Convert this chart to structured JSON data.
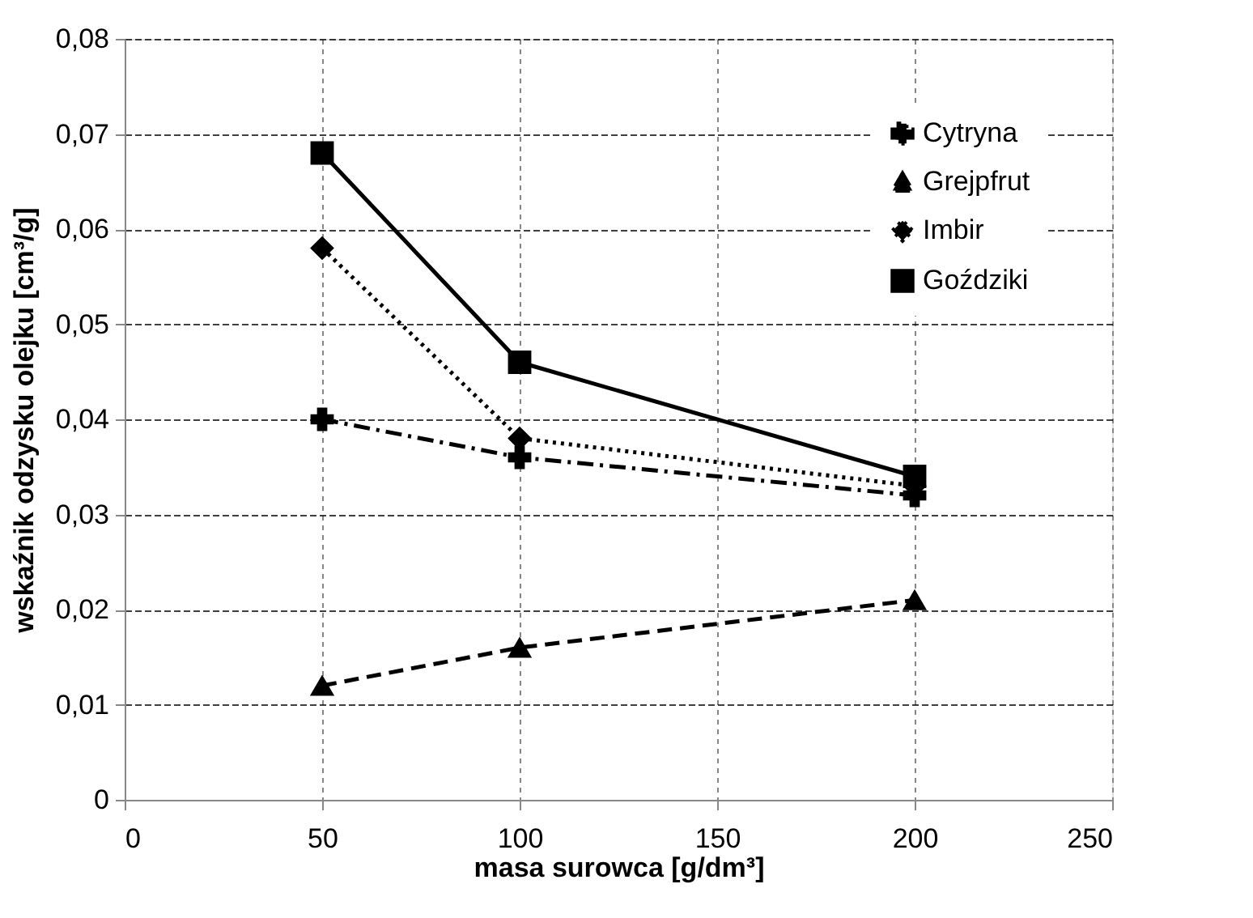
{
  "chart_data": {
    "type": "line",
    "xlabel": "masa surowca [g/dm³]",
    "ylabel": "wskaźnik odzysku olejku [cm³/g]",
    "x": [
      50,
      100,
      200
    ],
    "series": [
      {
        "name": "Cytryna",
        "color": "#000000",
        "values": [
          0.04,
          0.036,
          0.032
        ],
        "line_style": "dashdot",
        "marker": "cross"
      },
      {
        "name": "Grejpfrut",
        "color": "#000000",
        "values": [
          0.012,
          0.016,
          0.021
        ],
        "line_style": "dashed",
        "marker": "triangle"
      },
      {
        "name": "Imbir",
        "color": "#000000",
        "values": [
          0.058,
          0.038,
          0.033
        ],
        "line_style": "dotted",
        "marker": "diamond"
      },
      {
        "name": "Goździki",
        "color": "#000000",
        "values": [
          0.068,
          0.046,
          0.034
        ],
        "line_style": "solid",
        "marker": "square"
      }
    ],
    "xlim": [
      0,
      250
    ],
    "xticks": [
      0,
      50,
      100,
      150,
      200,
      250
    ],
    "ylim": [
      0,
      0.08
    ],
    "yticks": [
      0,
      {
        "value": 0.01,
        "label": "0,01"
      },
      {
        "value": 0.02,
        "label": "0,02"
      },
      {
        "value": 0.03,
        "label": "0,03"
      },
      {
        "value": 0.04,
        "label": "0,04"
      },
      {
        "value": 0.05,
        "label": "0,05"
      },
      {
        "value": 0.06,
        "label": "0,06"
      },
      {
        "value": 0.07,
        "label": "0,07"
      },
      {
        "value": 0.08,
        "label": "0,08"
      }
    ],
    "grid": true,
    "legend": "top right"
  }
}
